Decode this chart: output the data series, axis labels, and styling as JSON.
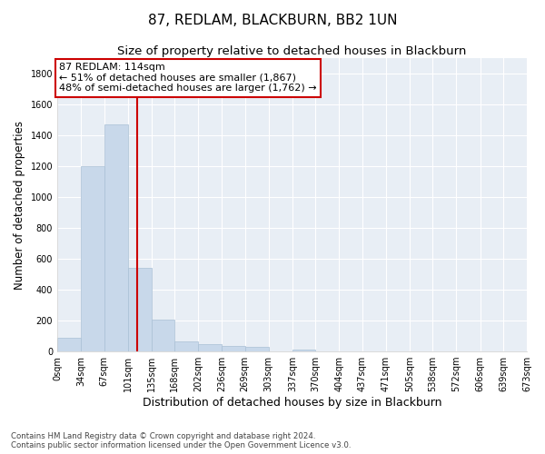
{
  "title": "87, REDLAM, BLACKBURN, BB2 1UN",
  "subtitle": "Size of property relative to detached houses in Blackburn",
  "xlabel": "Distribution of detached houses by size in Blackburn",
  "ylabel": "Number of detached properties",
  "bin_edges": [
    0,
    34,
    67,
    101,
    135,
    168,
    202,
    236,
    269,
    303,
    337,
    370,
    404,
    437,
    471,
    505,
    538,
    572,
    606,
    639,
    673
  ],
  "bar_heights": [
    90,
    1200,
    1470,
    540,
    205,
    65,
    47,
    37,
    27,
    0,
    14,
    0,
    0,
    0,
    0,
    0,
    0,
    0,
    0,
    0
  ],
  "bar_color": "#c8d8ea",
  "bar_edgecolor": "#aac0d5",
  "bar_linewidth": 0.5,
  "vline_x": 114,
  "vline_color": "#cc0000",
  "ylim": [
    0,
    1900
  ],
  "yticks": [
    0,
    200,
    400,
    600,
    800,
    1000,
    1200,
    1400,
    1600,
    1800
  ],
  "annotation_text": "87 REDLAM: 114sqm\n← 51% of detached houses are smaller (1,867)\n48% of semi-detached houses are larger (1,762) →",
  "annotation_fontsize": 8,
  "title_fontsize": 11,
  "subtitle_fontsize": 9.5,
  "xlabel_fontsize": 9,
  "ylabel_fontsize": 8.5,
  "tick_fontsize": 7,
  "footer_text": "Contains HM Land Registry data © Crown copyright and database right 2024.\nContains public sector information licensed under the Open Government Licence v3.0.",
  "background_color": "#ffffff",
  "plot_bg_color": "#e8eef5",
  "grid_color": "#ffffff"
}
